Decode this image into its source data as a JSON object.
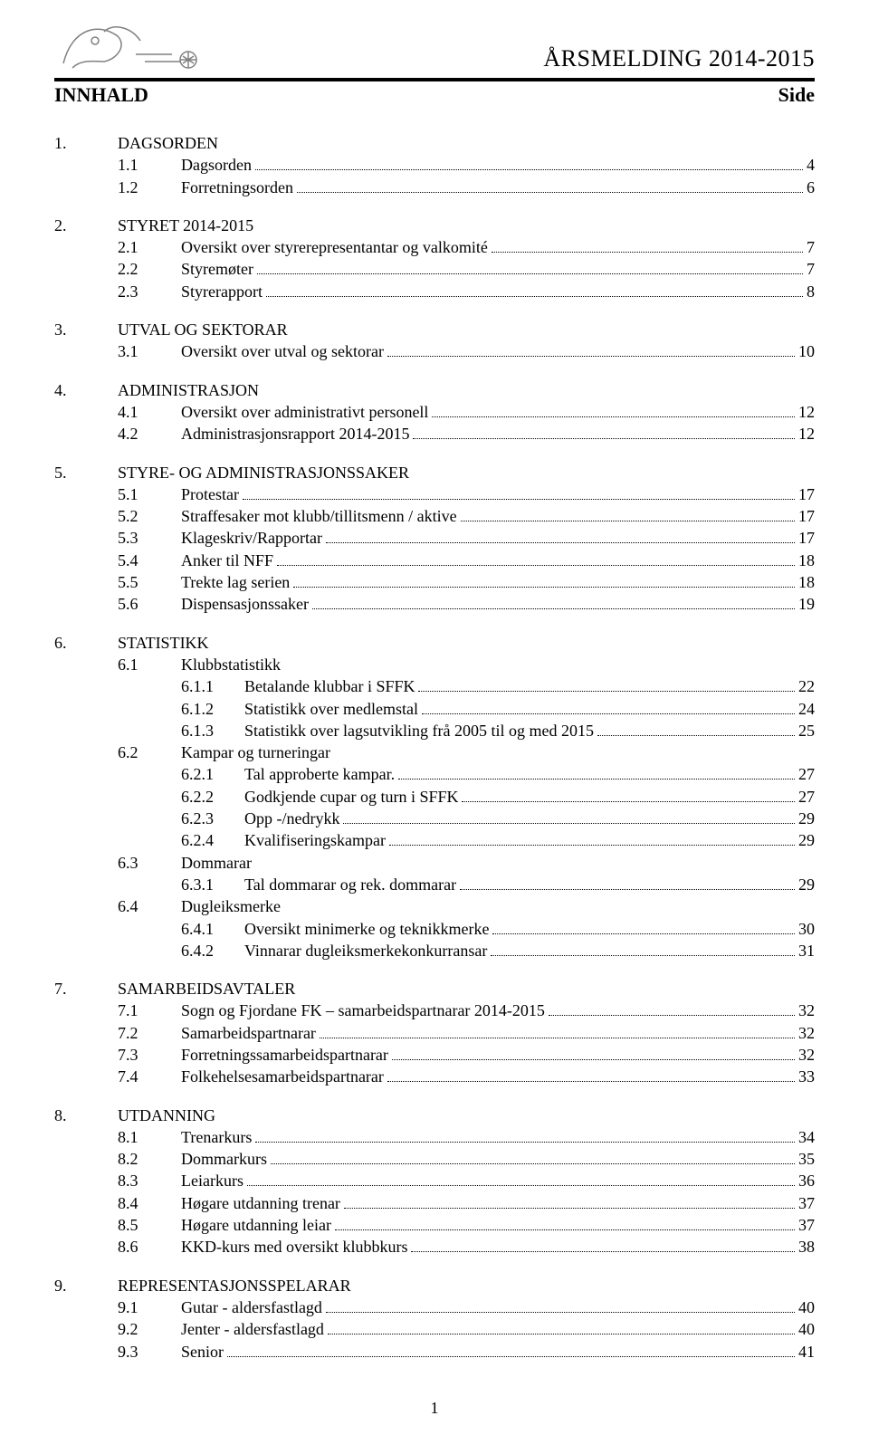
{
  "header": {
    "doc_title": "ÅRSMELDING 2014-2015",
    "left_label": "INNHALD",
    "right_label": "Side"
  },
  "footer": {
    "page_number": "1"
  },
  "colors": {
    "text": "#000000",
    "background": "#ffffff",
    "rule": "#000000",
    "logo_stroke": "#808080"
  },
  "typography": {
    "family": "Times New Roman",
    "title_size_pt": 20,
    "subhead_size_pt": 16,
    "body_size_pt": 13
  },
  "sections": [
    {
      "num": "1.",
      "title": "DAGSORDEN",
      "subs": [
        {
          "num": "1.1",
          "text": "Dagsorden",
          "page": "4"
        },
        {
          "num": "1.2",
          "text": "Forretningsorden",
          "page": "6"
        }
      ]
    },
    {
      "num": "2.",
      "title": "STYRET 2014-2015",
      "subs": [
        {
          "num": "2.1",
          "text": "Oversikt over styrerepresentantar og valkomité",
          "page": "7"
        },
        {
          "num": "2.2",
          "text": "Styremøter",
          "page": "7"
        },
        {
          "num": "2.3",
          "text": "Styrerapport",
          "page": "8"
        }
      ]
    },
    {
      "num": "3.",
      "title": "UTVAL OG SEKTORAR",
      "subs": [
        {
          "num": "3.1",
          "text": "Oversikt over utval og sektorar",
          "page": "10"
        }
      ]
    },
    {
      "num": "4.",
      "title": "ADMINISTRASJON",
      "subs": [
        {
          "num": "4.1",
          "text": "Oversikt over administrativt personell",
          "page": "12"
        },
        {
          "num": "4.2",
          "text": "Administrasjonsrapport 2014-2015",
          "page": "12"
        }
      ]
    },
    {
      "num": "5.",
      "title": "STYRE- OG ADMINISTRASJONSSAKER",
      "subs": [
        {
          "num": "5.1",
          "text": "Protestar",
          "page": "17"
        },
        {
          "num": "5.2",
          "text": "Straffesaker mot klubb/tillitsmenn / aktive",
          "page": "17"
        },
        {
          "num": "5.3",
          "text": "Klageskriv/Rapportar",
          "page": "17"
        },
        {
          "num": "5.4",
          "text": "Anker til NFF",
          "page": "18"
        },
        {
          "num": "5.5",
          "text": "Trekte lag serien",
          "page": "18"
        },
        {
          "num": "5.6",
          "text": "Dispensasjonssaker",
          "page": "19"
        }
      ]
    },
    {
      "num": "6.",
      "title": "STATISTIKK",
      "subs": [
        {
          "num": "6.1",
          "text": "Klubbstatistikk",
          "page": null,
          "subsubs": [
            {
              "num": "6.1.1",
              "text": "Betalande klubbar i SFFK",
              "page": "22"
            },
            {
              "num": "6.1.2",
              "text": "Statistikk over medlemstal",
              "page": "24"
            },
            {
              "num": "6.1.3",
              "text": "Statistikk over lagsutvikling frå 2005 til og med 2015",
              "page": "25"
            }
          ]
        },
        {
          "num": "6.2",
          "text": "Kampar og turneringar",
          "page": null,
          "subsubs": [
            {
              "num": "6.2.1",
              "text": "Tal approberte kampar.",
              "page": "27"
            },
            {
              "num": "6.2.2",
              "text": "Godkjende cupar og turn i SFFK",
              "page": "27"
            },
            {
              "num": "6.2.3",
              "text": "Opp -/nedrykk",
              "page": "29"
            },
            {
              "num": "6.2.4",
              "text": "Kvalifiseringskampar",
              "page": "29"
            }
          ]
        },
        {
          "num": "6.3",
          "text": "Dommarar",
          "page": null,
          "subsubs": [
            {
              "num": "6.3.1",
              "text": "Tal dommarar og rek. dommarar",
              "page": "29"
            }
          ]
        },
        {
          "num": "6.4",
          "text": "Dugleiksmerke",
          "page": null,
          "subsubs": [
            {
              "num": "6.4.1",
              "text": "Oversikt minimerke og teknikkmerke",
              "page": "30"
            },
            {
              "num": "6.4.2",
              "text": "Vinnarar dugleiksmerkekonkurransar",
              "page": "31"
            }
          ]
        }
      ]
    },
    {
      "num": "7.",
      "title": "SAMARBEIDSAVTALER",
      "subs": [
        {
          "num": "7.1",
          "text": "Sogn og Fjordane FK – samarbeidspartnarar 2014-2015",
          "page": "32"
        },
        {
          "num": "7.2",
          "text": "Samarbeidspartnarar",
          "page": "32"
        },
        {
          "num": "7.3",
          "text": "Forretningssamarbeidspartnarar",
          "page": "32"
        },
        {
          "num": "7.4",
          "text": "Folkehelsesamarbeidspartnarar",
          "page": "33"
        }
      ]
    },
    {
      "num": "8.",
      "title": "UTDANNING",
      "subs": [
        {
          "num": "8.1",
          "text": "Trenarkurs",
          "page": "34"
        },
        {
          "num": "8.2",
          "text": "Dommarkurs",
          "page": "35"
        },
        {
          "num": "8.3",
          "text": "Leiarkurs",
          "page": "36"
        },
        {
          "num": "8.4",
          "text": "Høgare utdanning trenar",
          "page": "37"
        },
        {
          "num": "8.5",
          "text": "Høgare utdanning leiar",
          "page": "37"
        },
        {
          "num": "8.6",
          "text": "KKD-kurs med oversikt klubbkurs",
          "page": "38"
        }
      ]
    },
    {
      "num": "9.",
      "title": "REPRESENTASJONSSPELARAR",
      "subs": [
        {
          "num": "9.1",
          "text": "Gutar - aldersfastlagd",
          "page": "40"
        },
        {
          "num": "9.2",
          "text": "Jenter - aldersfastlagd",
          "page": "40"
        },
        {
          "num": "9.3",
          "text": "Senior",
          "page": "41"
        }
      ]
    }
  ]
}
